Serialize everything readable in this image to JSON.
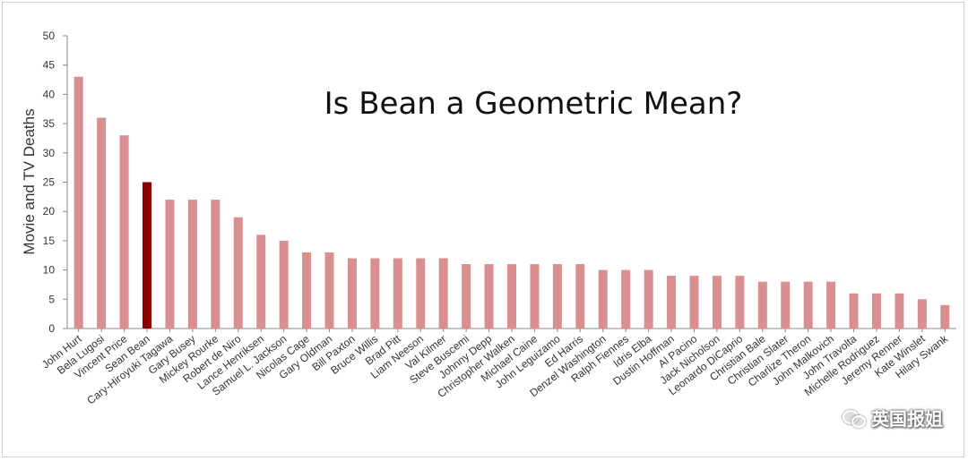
{
  "chart_data": {
    "type": "bar",
    "title": "Is Bean a Geometric Mean?",
    "xlabel": "",
    "ylabel": "Movie and TV Deaths",
    "ylim": [
      0,
      50
    ],
    "yticks": [
      0,
      5,
      10,
      15,
      20,
      25,
      30,
      35,
      40,
      45,
      50
    ],
    "grid": false,
    "legend": "none",
    "categories": [
      "John Hurt",
      "Bela Lugosi",
      "Vincent Price",
      "Sean Bean",
      "Cary-Hiroyuki Tagawa",
      "Gary Busey",
      "Mickey Rourke",
      "Robert de Niro",
      "Lance Henriksen",
      "Samuel L. Jackson",
      "Nicolas Cage",
      "Gary Oldman",
      "Bill Paxton",
      "Bruce Willis",
      "Brad Pitt",
      "Liam Neeson",
      "Val Kilmer",
      "Steve Buscemi",
      "Johnny Depp",
      "Christopher Walken",
      "Michael Caine",
      "John Leguizamo",
      "Ed Harris",
      "Denzel Washington",
      "Ralph Fiennes",
      "Idris Elba",
      "Dustin Hoffman",
      "Al Pacino",
      "Jack Nicholson",
      "Leonardo DiCaprio",
      "Christian Bale",
      "Christian Slater",
      "Charlize Theron",
      "John Malkovich",
      "John Travolta",
      "Michelle Rodriguez",
      "Jeremy Renner",
      "Kate Winslet",
      "Hilary Swank"
    ],
    "values": [
      43,
      36,
      33,
      25,
      22,
      22,
      22,
      19,
      16,
      15,
      13,
      13,
      12,
      12,
      12,
      12,
      12,
      11,
      11,
      11,
      11,
      11,
      11,
      10,
      10,
      10,
      9,
      9,
      9,
      9,
      8,
      8,
      8,
      8,
      6,
      6,
      6,
      5,
      4
    ],
    "highlight": "Sean Bean",
    "colors": {
      "bar": "#d88f8e",
      "highlight": "#8b0000",
      "axis": "#888888"
    }
  },
  "watermark": {
    "text": "英国报姐",
    "icon": "wechat-bubbles-icon"
  }
}
